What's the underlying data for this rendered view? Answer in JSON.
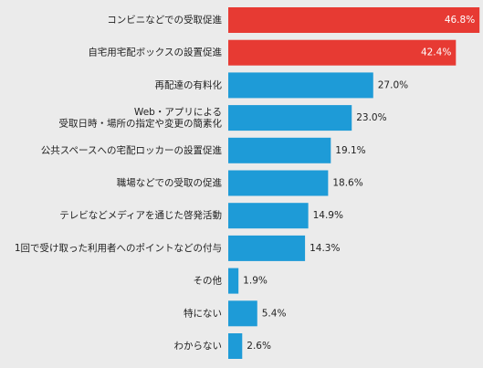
{
  "chart_data": {
    "type": "bar",
    "orientation": "horizontal",
    "categories": [
      "コンビニなどでの受取促進",
      "自宅用宅配ボックスの設置促進",
      "再配達の有料化",
      "Web・アプリによる\n受取日時・場所の指定や変更の簡素化",
      "公共スペースへの宅配ロッカーの設置促進",
      "職場などでの受取の促進",
      "テレビなどメディアを通じた啓発活動",
      "1回で受け取った利用者へのポイントなどの付与",
      "その他",
      "特にない",
      "わからない"
    ],
    "values": [
      46.8,
      42.4,
      27.0,
      23.0,
      19.1,
      18.6,
      14.9,
      14.3,
      1.9,
      5.4,
      2.6
    ],
    "value_labels": [
      "46.8%",
      "42.4%",
      "27.0%",
      "23.0%",
      "19.1%",
      "18.6%",
      "14.9%",
      "14.3%",
      "1.9%",
      "5.4%",
      "2.6%"
    ],
    "colors": [
      "#e73a33",
      "#e73a33",
      "#1e9bd7",
      "#1e9bd7",
      "#1e9bd7",
      "#1e9bd7",
      "#1e9bd7",
      "#1e9bd7",
      "#1e9bd7",
      "#1e9bd7",
      "#1e9bd7"
    ]
  }
}
